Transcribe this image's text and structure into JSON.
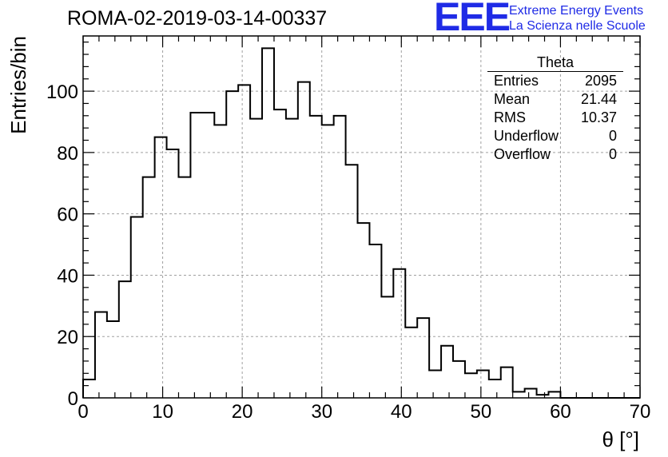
{
  "title": "ROMA-02-2019-03-14-00337",
  "logo": {
    "mark": "EEE",
    "line1": "Extreme Energy Events",
    "line2": "La Scienza nelle Scuole",
    "color": "#1f2be6"
  },
  "stats_box": {
    "title": "Theta",
    "rows": [
      {
        "label": "Entries",
        "value": "2095"
      },
      {
        "label": "Mean",
        "value": "21.44"
      },
      {
        "label": "RMS",
        "value": "10.37"
      },
      {
        "label": "Underflow",
        "value": "0"
      },
      {
        "label": "Overflow",
        "value": "0"
      }
    ]
  },
  "chart_data": {
    "type": "bar",
    "style": "step-histogram",
    "xlabel": "θ [°]",
    "ylabel": "Entries/bin",
    "xlim": [
      0,
      70
    ],
    "ylim": [
      0,
      118
    ],
    "x_ticks": [
      0,
      10,
      20,
      30,
      40,
      50,
      60,
      70
    ],
    "y_ticks": [
      0,
      20,
      40,
      60,
      80,
      100
    ],
    "grid": true,
    "bin_width": 1.5,
    "bin_edges_start": 0,
    "values": [
      6,
      28,
      25,
      38,
      59,
      72,
      85,
      81,
      72,
      93,
      93,
      89,
      100,
      102,
      91,
      114,
      94,
      91,
      103,
      92,
      89,
      92,
      76,
      57,
      50,
      33,
      42,
      23,
      26,
      9,
      17,
      12,
      8,
      9,
      6,
      10,
      2,
      3,
      1,
      2,
      0,
      0,
      0,
      0,
      0,
      0,
      0
    ]
  }
}
